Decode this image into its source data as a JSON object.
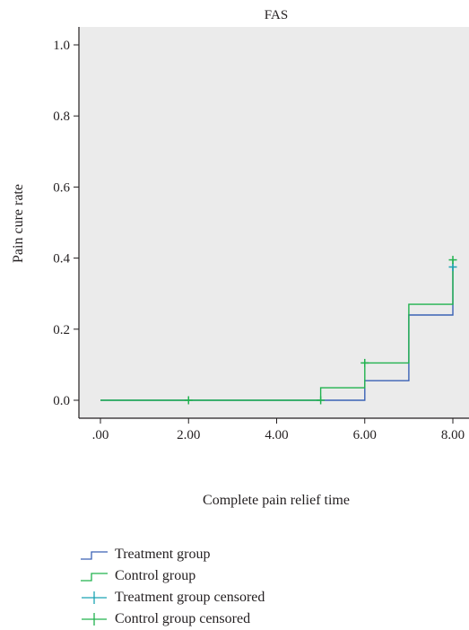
{
  "chart_data": {
    "type": "line",
    "title": "FAS",
    "xlabel": "Complete pain relief time",
    "ylabel": "Pain cure rate",
    "xlim": [
      0,
      8
    ],
    "ylim": [
      0,
      1.0
    ],
    "x_ticks": [
      0,
      2,
      4,
      6,
      8
    ],
    "x_tick_labels": [
      ".00",
      "2.00",
      "4.00",
      "6.00",
      "8.00"
    ],
    "y_ticks": [
      0,
      0.2,
      0.4,
      0.6,
      0.8,
      1.0
    ],
    "y_tick_labels": [
      "0.0",
      "0.2",
      "0.4",
      "0.6",
      "0.8",
      "1.0"
    ],
    "grid": false,
    "plot_background": "#ebebeb",
    "legend_position": "bottom",
    "series": [
      {
        "name": "Treatment group",
        "color": "#3a62b5",
        "steps": [
          [
            0,
            0
          ],
          [
            5,
            0
          ],
          [
            6,
            0.055
          ],
          [
            7,
            0.24
          ],
          [
            8,
            0.375
          ]
        ],
        "censored": [
          [
            8,
            0.375
          ]
        ]
      },
      {
        "name": "Control group",
        "color": "#20b24e",
        "steps": [
          [
            0,
            0
          ],
          [
            5,
            0.035
          ],
          [
            6,
            0.105
          ],
          [
            7,
            0.27
          ],
          [
            8,
            0.395
          ]
        ],
        "censored": [
          [
            2,
            0
          ],
          [
            5,
            0
          ],
          [
            6,
            0.105
          ],
          [
            8,
            0.395
          ]
        ]
      }
    ],
    "legend": [
      {
        "label": "Treatment group",
        "kind": "step",
        "color": "#3a62b5"
      },
      {
        "label": "Control group",
        "kind": "step",
        "color": "#20b24e"
      },
      {
        "label": "Treatment group censored",
        "kind": "cross",
        "color": "#1aa3b3"
      },
      {
        "label": "Control group censored",
        "kind": "cross",
        "color": "#20b24e"
      }
    ]
  }
}
